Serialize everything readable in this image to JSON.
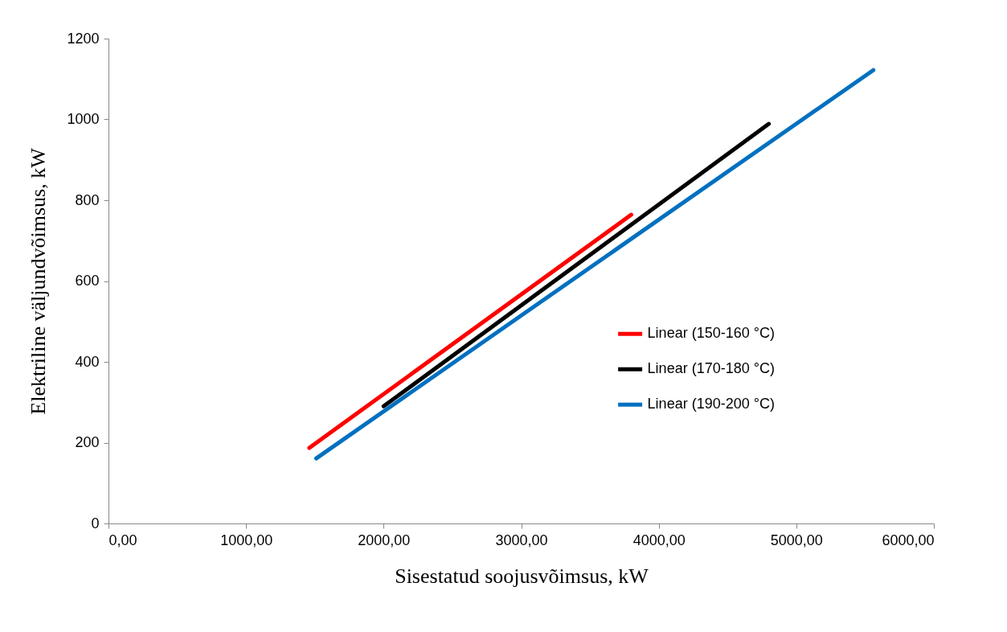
{
  "chart_data": {
    "type": "line",
    "xlabel": "Sisestatud soojusvõimsus, kW",
    "ylabel": "Elektriline väljundvõimsus, kW",
    "series": [
      {
        "name": "Linear (150-160 °C)",
        "color": "#ff0000",
        "x": [
          1460,
          3800
        ],
        "values": [
          187,
          764
        ]
      },
      {
        "name": "Linear (170-180 °C)",
        "color": "#000000",
        "x": [
          2000,
          4800
        ],
        "values": [
          290,
          989
        ]
      },
      {
        "name": "Linear (190-200 °C)",
        "color": "#0070c0",
        "x": [
          1510,
          5560
        ],
        "values": [
          161,
          1122
        ]
      }
    ],
    "xlim": [
      0,
      6000
    ],
    "xticks": [
      {
        "value": 0,
        "label": "0,00"
      },
      {
        "value": 1000,
        "label": "1000,00"
      },
      {
        "value": 2000,
        "label": "2000,00"
      },
      {
        "value": 3000,
        "label": "3000,00"
      },
      {
        "value": 4000,
        "label": "4000,00"
      },
      {
        "value": 5000,
        "label": "5000,00"
      },
      {
        "value": 6000,
        "label": "6000,00"
      }
    ],
    "ylim": [
      0,
      1200
    ],
    "yticks": [
      0,
      200,
      400,
      600,
      800,
      1000,
      1200
    ],
    "legend": "right",
    "grid": false
  }
}
